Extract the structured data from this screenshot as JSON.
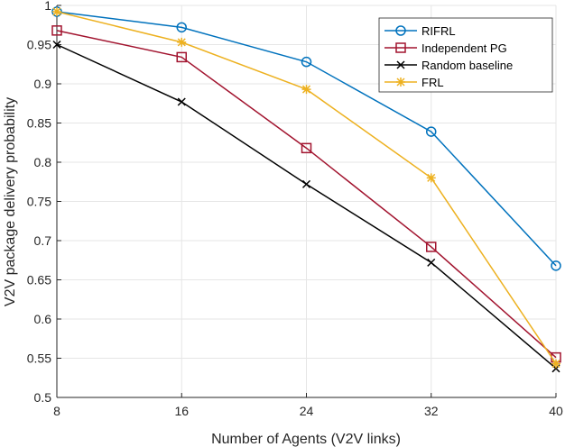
{
  "chart_data": {
    "type": "line",
    "title": "",
    "xlabel": "Number of Agents (V2V links)",
    "ylabel": "V2V package delivery probability",
    "x": [
      8,
      16,
      24,
      32,
      40
    ],
    "xlim": [
      8,
      40
    ],
    "ylim": [
      0.5,
      1
    ],
    "xticks": [
      "8",
      "16",
      "24",
      "32",
      "40"
    ],
    "yticks": [
      "0.5",
      "0.55",
      "0.6",
      "0.65",
      "0.7",
      "0.75",
      "0.8",
      "0.85",
      "0.9",
      "0.95",
      "1"
    ],
    "grid": true,
    "legend_position": "top-right",
    "series": [
      {
        "name": "RIFRL",
        "color": "#0072BD",
        "marker": "circle",
        "values": [
          0.992,
          0.972,
          0.928,
          0.839,
          0.668
        ]
      },
      {
        "name": "Independent PG",
        "color": "#A2142F",
        "marker": "square",
        "values": [
          0.968,
          0.934,
          0.818,
          0.692,
          0.551
        ]
      },
      {
        "name": "Random baseline",
        "color": "#000000",
        "marker": "x",
        "values": [
          0.95,
          0.877,
          0.772,
          0.672,
          0.537
        ]
      },
      {
        "name": "FRL",
        "color": "#EDB120",
        "marker": "asterisk",
        "values": [
          0.992,
          0.953,
          0.893,
          0.78,
          0.543
        ]
      }
    ]
  }
}
